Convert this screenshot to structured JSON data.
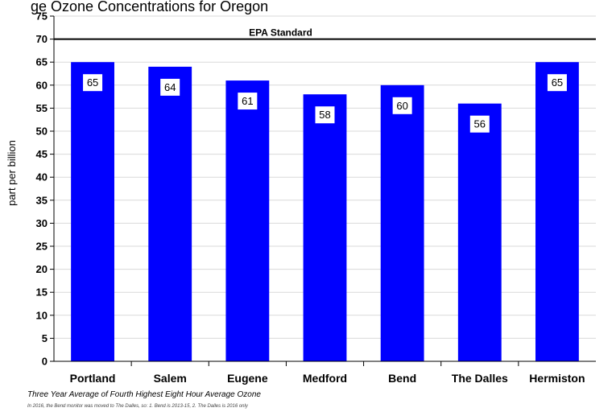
{
  "chart_data": {
    "type": "bar",
    "title": "ge Ozone Concentrations for Oregon",
    "xlabel": "",
    "ylabel": "part per billion",
    "categories": [
      "Portland",
      "Salem",
      "Eugene",
      "Medford",
      "Bend",
      "The Dalles",
      "Hermiston"
    ],
    "values": [
      65,
      64,
      61,
      58,
      60,
      56,
      65
    ],
    "ylim": [
      0,
      75
    ],
    "yticks": [
      0,
      5,
      10,
      15,
      20,
      25,
      30,
      35,
      40,
      45,
      50,
      55,
      60,
      65,
      70,
      75
    ],
    "bar_color": "#0000ff",
    "reference_line": {
      "value": 70,
      "label": "EPA Standard",
      "color": "#000000"
    },
    "grid": "horizontal",
    "legend": "none"
  },
  "caption": "Three Year Average of Fourth Highest Eight Hour Average Ozone",
  "footnote": "In 2016, the Bend monitor  was moved to The Dalles, so:  1. Bend is 2013-15,  2. The Dalles is 2016 only"
}
